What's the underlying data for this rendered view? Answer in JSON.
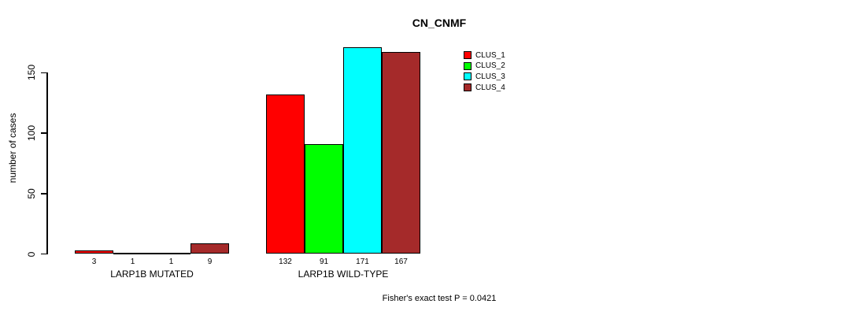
{
  "chart_data": {
    "type": "bar",
    "title": "CN_CNMF",
    "ylabel": "number of cases",
    "xlabel": "",
    "yticks": [
      0,
      50,
      100,
      150
    ],
    "ylim": [
      0,
      175
    ],
    "grid": false,
    "legend_position": "top-right-inside",
    "categories": [
      "LARP1B MUTATED",
      "LARP1B WILD-TYPE"
    ],
    "series": [
      {
        "name": "CLUS_1",
        "color": "#FF0000",
        "values": [
          3,
          132
        ]
      },
      {
        "name": "CLUS_2",
        "color": "#00FF00",
        "values": [
          1,
          91
        ]
      },
      {
        "name": "CLUS_3",
        "color": "#00FFFF",
        "values": [
          1,
          171
        ]
      },
      {
        "name": "CLUS_4",
        "color": "#A52A2A",
        "values": [
          9,
          167
        ]
      }
    ],
    "bar_value_labels": [
      [
        3,
        1,
        1,
        9
      ],
      [
        132,
        91,
        171,
        167
      ]
    ],
    "footnote": "Fisher's exact test P = 0.0421"
  },
  "colors": {
    "background": "#FFFFFF",
    "axis": "#000000",
    "text": "#000000"
  }
}
